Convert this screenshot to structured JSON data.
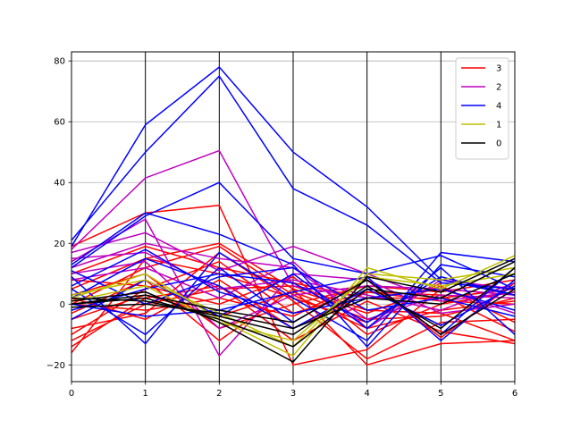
{
  "chart_data": {
    "type": "line",
    "subtype": "parallel-coordinates",
    "title": "",
    "xlabel": "",
    "ylabel": "",
    "x": [
      0,
      1,
      2,
      3,
      4,
      5,
      6
    ],
    "xlim": [
      0,
      6
    ],
    "ylim": [
      -25.5,
      83
    ],
    "yticks": [
      -20,
      0,
      20,
      40,
      60,
      80
    ],
    "xticks": [
      0,
      1,
      2,
      3,
      4,
      5,
      6
    ],
    "grid": "y-axis gridlines; black vertical lines at each x tick",
    "legend_position": "top-right",
    "legend": [
      {
        "label": "3",
        "color": "#ff0000"
      },
      {
        "label": "2",
        "color": "#bf00bf"
      },
      {
        "label": "4",
        "color": "#0000ff"
      },
      {
        "label": "1",
        "color": "#bfbf00"
      },
      {
        "label": "0",
        "color": "#000000"
      }
    ],
    "series": [
      {
        "name": "3",
        "color": "#ff0000",
        "values": [
          [
            19,
            30,
            32.5,
            -20,
            -15,
            5,
            3
          ],
          [
            -16,
            15,
            20,
            5,
            -20,
            -13,
            -12
          ],
          [
            0,
            12,
            19,
            3,
            -8,
            -2,
            1
          ],
          [
            -12,
            0,
            5,
            6,
            -2,
            -3,
            -12
          ],
          [
            -10,
            5,
            14,
            -3,
            4,
            1,
            0
          ],
          [
            5,
            15,
            10,
            2,
            -6,
            7,
            5
          ],
          [
            -5,
            3,
            -4,
            4,
            -5,
            -4,
            2
          ],
          [
            2,
            -5,
            8,
            -8,
            4,
            3,
            -9
          ],
          [
            8,
            6,
            0,
            9,
            -10,
            0,
            4
          ],
          [
            -14,
            2,
            6,
            -12,
            1,
            -9,
            -13
          ],
          [
            3,
            10,
            -8,
            0,
            6,
            4,
            8
          ],
          [
            -8,
            -3,
            17,
            1,
            -18,
            -6,
            -5
          ],
          [
            10,
            19,
            12,
            7,
            2,
            2,
            5
          ],
          [
            0,
            -2,
            2,
            -4,
            8,
            -11,
            7
          ],
          [
            -3,
            8,
            -12,
            5,
            -3,
            6,
            -6
          ]
        ]
      },
      {
        "name": "2",
        "color": "#bf00bf",
        "values": [
          [
            18,
            41.5,
            50.5,
            6,
            2,
            5,
            3
          ],
          [
            17,
            23.5,
            11,
            19,
            10,
            1,
            4
          ],
          [
            14,
            28,
            -17,
            10,
            8,
            -3,
            0
          ],
          [
            12,
            20,
            15,
            12,
            -5,
            3,
            2
          ],
          [
            15,
            17,
            5,
            8,
            3,
            -2,
            7
          ],
          [
            10,
            14,
            -8,
            3,
            6,
            5,
            -3
          ],
          [
            8,
            12,
            2,
            14,
            -8,
            8,
            5
          ]
        ]
      },
      {
        "name": "4",
        "color": "#0000ff",
        "values": [
          [
            19,
            59,
            78,
            50,
            32,
            8,
            3
          ],
          [
            21,
            50,
            75,
            38,
            26,
            7,
            5
          ],
          [
            12,
            29,
            40,
            15,
            10,
            16,
            5
          ],
          [
            13,
            30,
            23,
            13,
            -14,
            13,
            9
          ],
          [
            9,
            -13,
            17,
            2,
            -12,
            17,
            14
          ],
          [
            5,
            -10,
            12,
            -6,
            8,
            -10,
            12
          ],
          [
            -5,
            8,
            -4,
            10,
            -8,
            12,
            -10
          ],
          [
            2,
            15,
            6,
            -8,
            5,
            -7,
            6
          ],
          [
            11,
            0,
            9,
            12,
            -2,
            2,
            -4
          ],
          [
            0,
            -4,
            -2,
            4,
            9,
            -12,
            8
          ],
          [
            6,
            18,
            4,
            -3,
            2,
            5,
            -2
          ],
          [
            -2,
            5,
            10,
            7,
            -6,
            9,
            3
          ]
        ]
      },
      {
        "name": "1",
        "color": "#bfbf00",
        "values": [
          [
            2,
            10,
            -5,
            -17,
            12,
            5,
            16
          ],
          [
            3,
            8,
            -3,
            -14,
            10,
            8,
            12
          ],
          [
            1,
            6,
            -6,
            -12,
            9,
            6,
            10
          ]
        ]
      },
      {
        "name": "0",
        "color": "#000000",
        "values": [
          [
            1,
            4,
            -6,
            -19,
            9,
            4,
            15
          ],
          [
            0,
            2,
            -5,
            -14,
            5,
            2,
            14
          ],
          [
            -1,
            0,
            -3,
            -8,
            2,
            0,
            10
          ],
          [
            2,
            1,
            -4,
            -10,
            6,
            -8,
            12
          ],
          [
            0,
            3,
            -2,
            -6,
            8,
            -10,
            5
          ]
        ]
      }
    ]
  }
}
